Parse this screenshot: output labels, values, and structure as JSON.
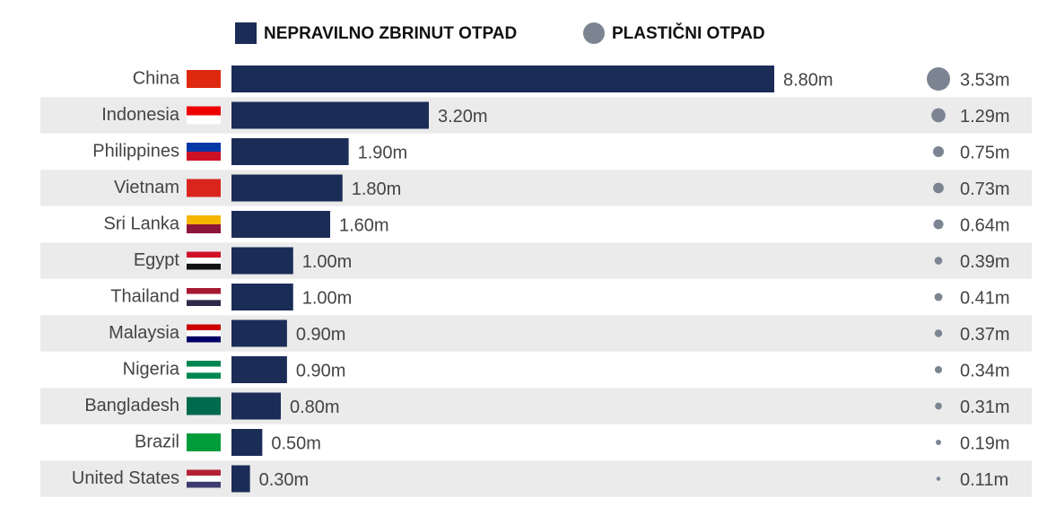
{
  "chart_data": {
    "type": "bar",
    "categories": [
      "China",
      "Indonesia",
      "Philippines",
      "Vietnam",
      "Sri Lanka",
      "Egypt",
      "Thailand",
      "Malaysia",
      "Nigeria",
      "Bangladesh",
      "Brazil",
      "United States"
    ],
    "series": [
      {
        "name": "NEPRAVILNO ZBRINUT OTPAD",
        "color": "#1b2d57",
        "values": [
          8.8,
          3.2,
          1.9,
          1.8,
          1.6,
          1.0,
          1.0,
          0.9,
          0.9,
          0.8,
          0.5,
          0.3
        ],
        "value_labels": [
          "8.80m",
          "3.20m",
          "1.90m",
          "1.80m",
          "1.60m",
          "1.00m",
          "1.00m",
          "0.90m",
          "0.90m",
          "0.80m",
          "0.50m",
          "0.30m"
        ]
      },
      {
        "name": "PLASTIČNI OTPAD",
        "color": "#7b8592",
        "values": [
          3.53,
          1.29,
          0.75,
          0.73,
          0.64,
          0.39,
          0.41,
          0.37,
          0.34,
          0.31,
          0.19,
          0.11
        ],
        "value_labels": [
          "3.53m",
          "1.29m",
          "0.75m",
          "0.73m",
          "0.64m",
          "0.39m",
          "0.41m",
          "0.37m",
          "0.34m",
          "0.31m",
          "0.19m",
          "0.11m"
        ]
      }
    ]
  }
}
